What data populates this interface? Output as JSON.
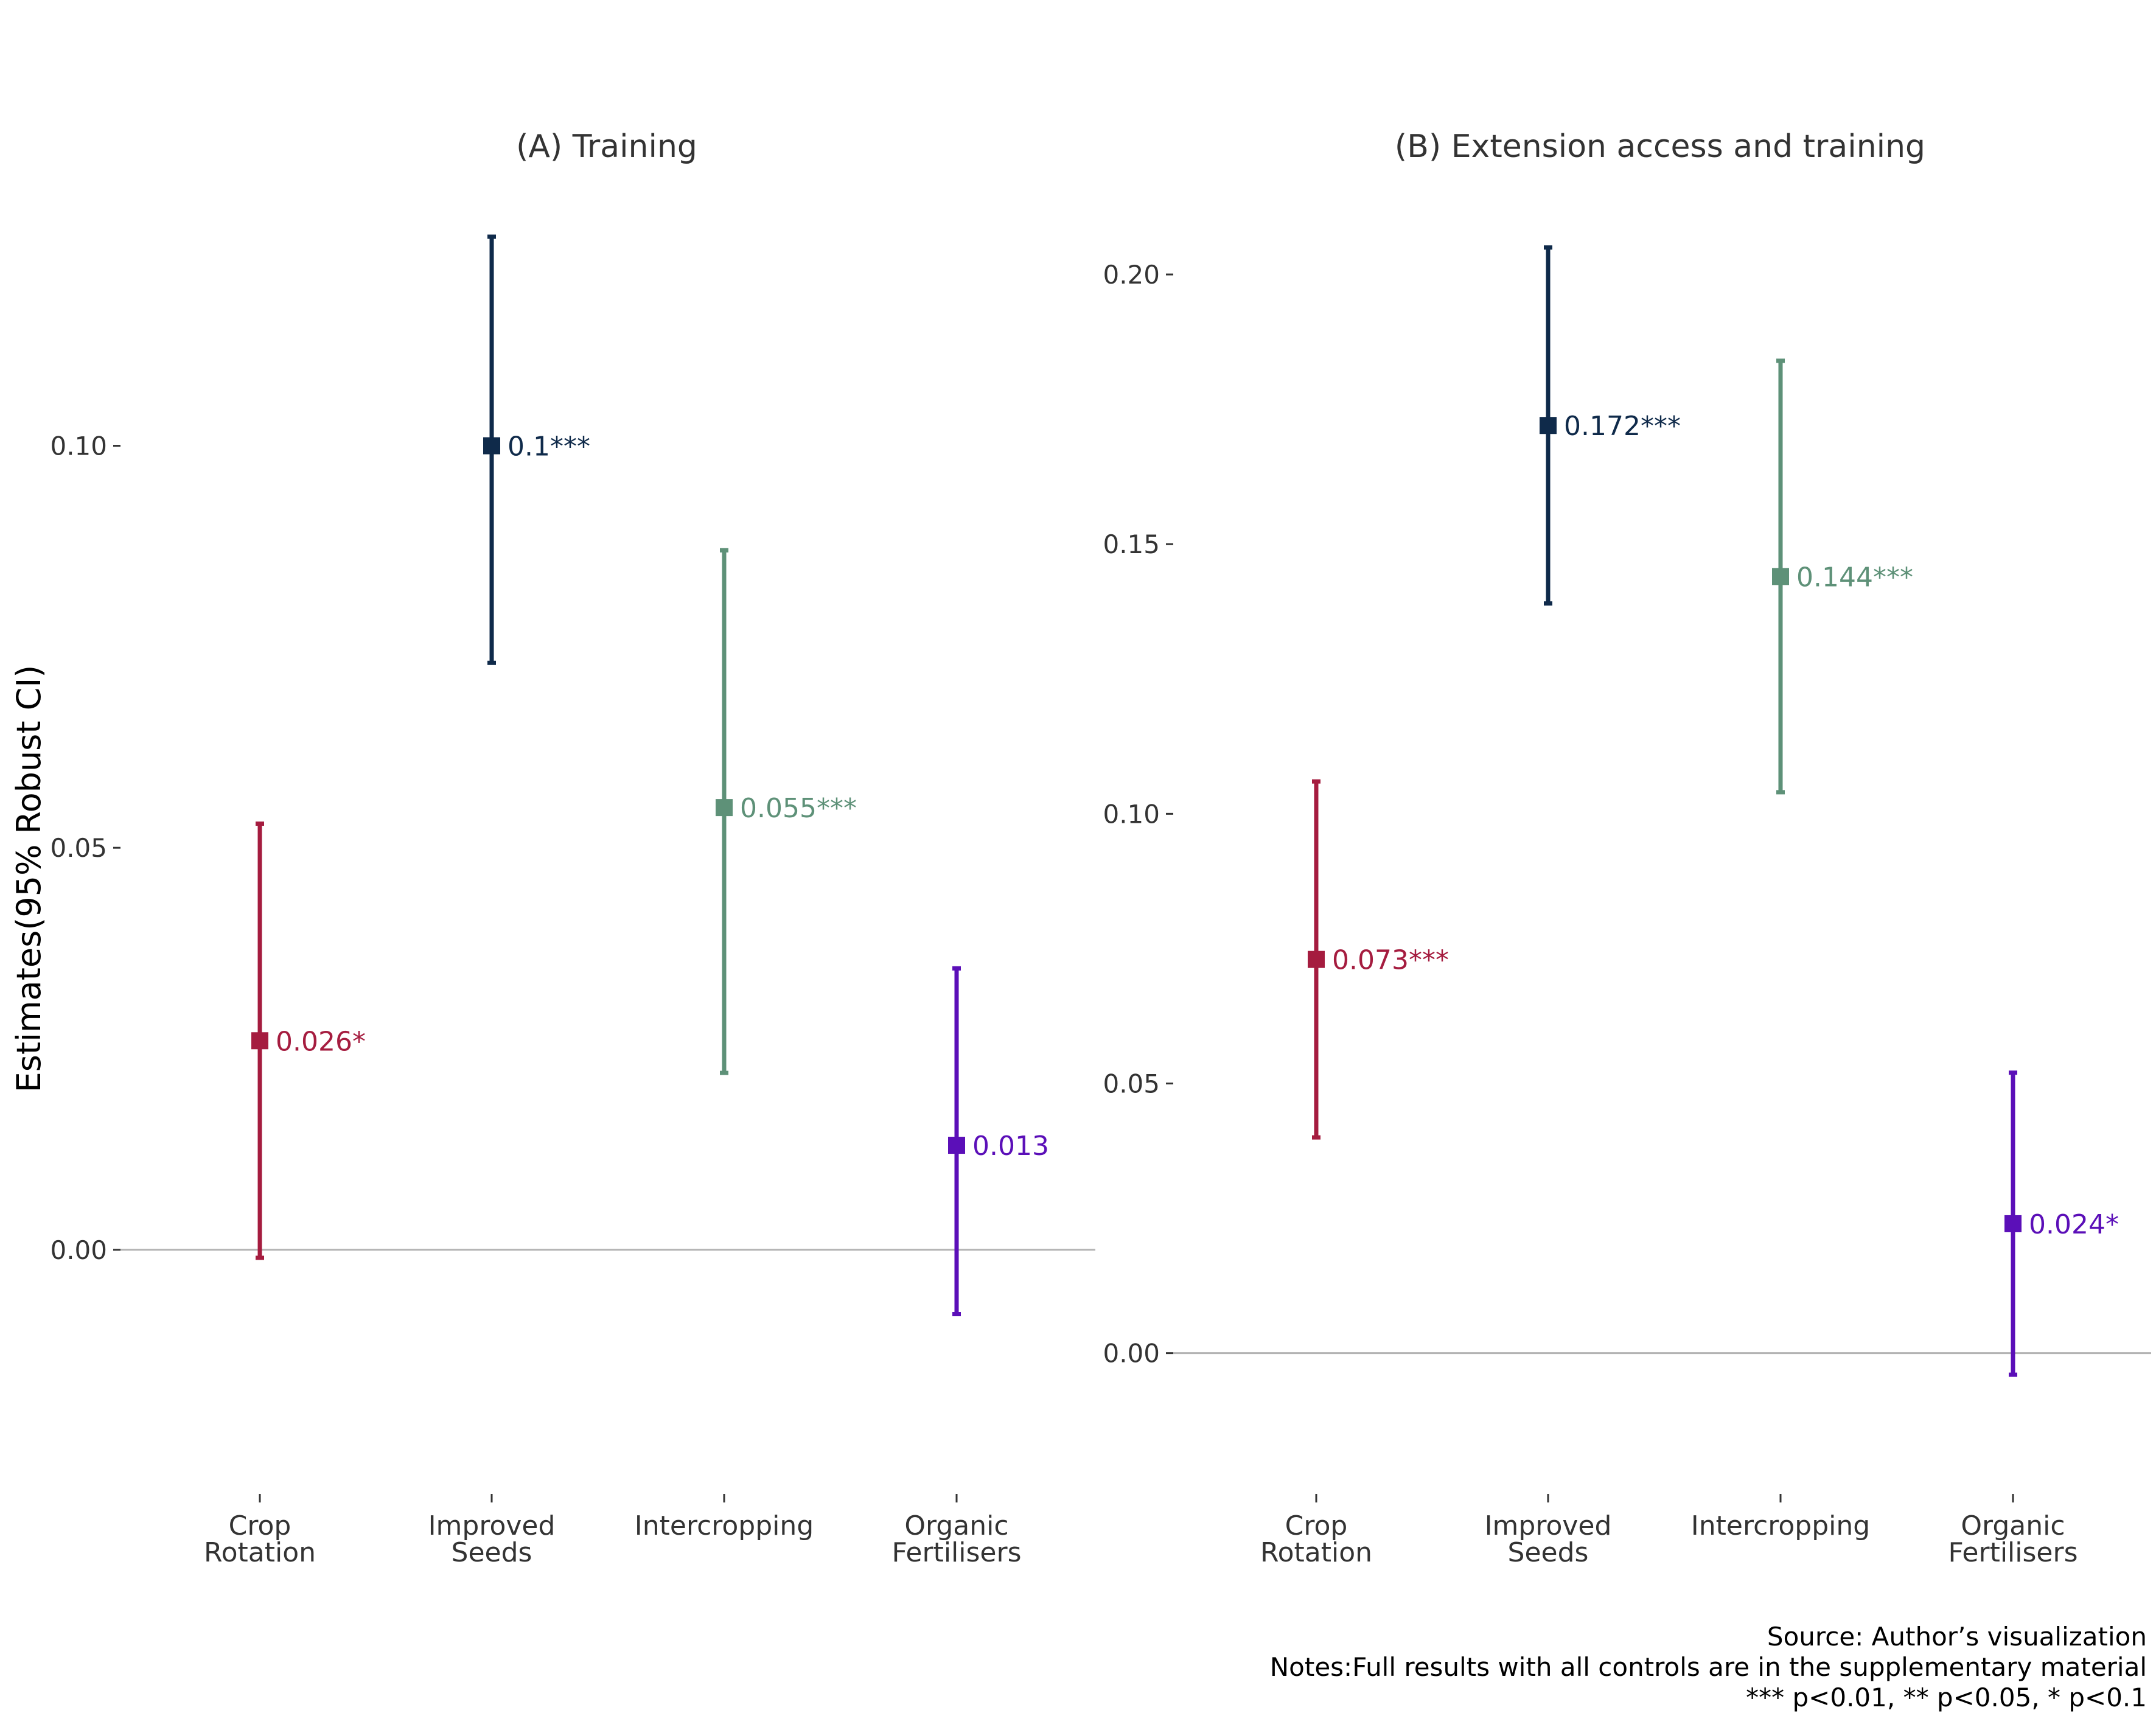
{
  "y_axis_label": "Estimates(95% Robust CI)",
  "notes": {
    "source": "Source: Author’s visualization",
    "full_results": "Notes:Full results with all controls are in the supplementary material",
    "significance": "*** p<0.01, ** p<0.05, * p<0.1"
  },
  "colors": {
    "crop_rotation": "#A51C3F",
    "improved_seeds": "#0F2A4A",
    "intercropping": "#5E9178",
    "organic_fertilisers": "#5B0FB8",
    "zero_line": "#B3B3B3",
    "axis_text": "#333333"
  },
  "chart_data": [
    {
      "type": "errorbar",
      "title": "(A) Training",
      "xlabel": "",
      "ylabel": "Estimates(95% Robust CI)",
      "ylim": [
        -0.015,
        0.126
      ],
      "yticks": [
        0.0,
        0.05,
        0.1
      ],
      "ytick_labels": [
        "0.00",
        "0.05",
        "0.10"
      ],
      "categories": [
        "Crop\nRotation",
        "Improved\nSeeds",
        "Intercropping",
        "Organic\nFertilisers"
      ],
      "estimates": [
        0.026,
        0.1,
        0.055,
        0.013
      ],
      "ci_lower": [
        -0.001,
        0.073,
        0.022,
        -0.008
      ],
      "ci_upper": [
        0.053,
        0.126,
        0.087,
        0.035
      ],
      "labels": [
        "0.026*",
        "0.1***",
        "0.055***",
        "0.013"
      ],
      "grid": false,
      "legend": "none"
    },
    {
      "type": "errorbar",
      "title": "(B) Extension access and training",
      "xlabel": "",
      "ylabel": "",
      "ylim": [
        -0.012,
        0.207
      ],
      "yticks": [
        0.0,
        0.05,
        0.1,
        0.15,
        0.2
      ],
      "ytick_labels": [
        "0.00",
        "0.05",
        "0.10",
        "0.15",
        "0.20"
      ],
      "categories": [
        "Crop\nRotation",
        "Improved\nSeeds",
        "Intercropping",
        "Organic\nFertilisers"
      ],
      "estimates": [
        0.073,
        0.172,
        0.144,
        0.024
      ],
      "ci_lower": [
        0.04,
        0.139,
        0.104,
        -0.004
      ],
      "ci_upper": [
        0.106,
        0.205,
        0.184,
        0.052
      ],
      "labels": [
        "0.073***",
        "0.172***",
        "0.144***",
        "0.024*"
      ],
      "grid": false,
      "legend": "none"
    }
  ]
}
